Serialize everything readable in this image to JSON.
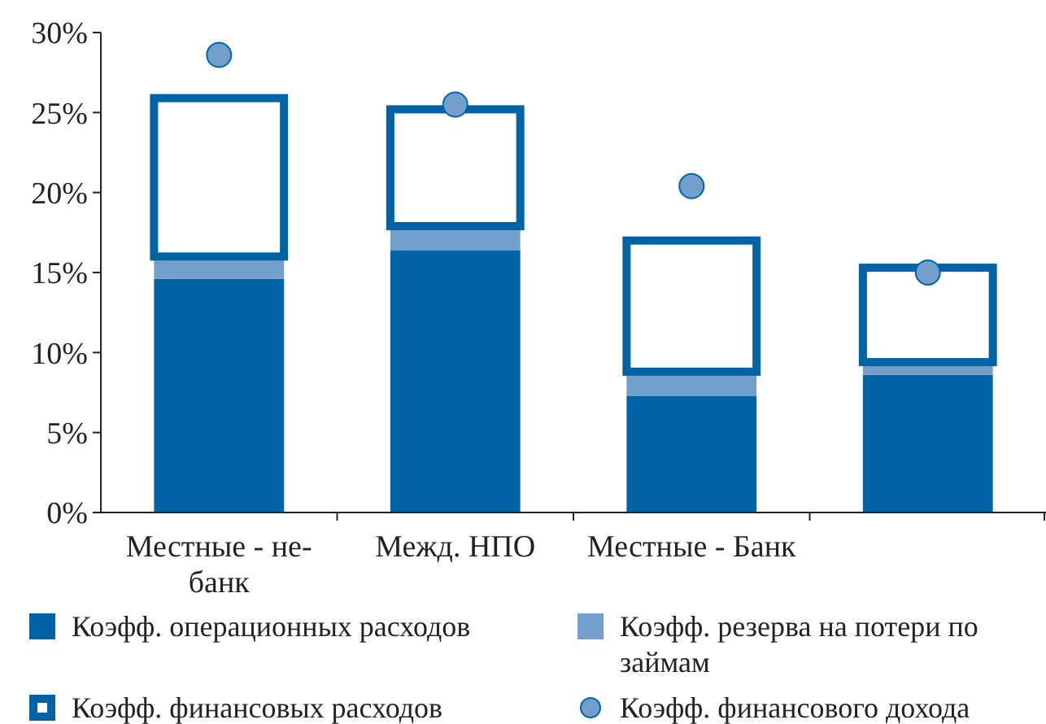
{
  "chart_data": {
    "type": "bar",
    "stacked": true,
    "categories": [
      "Местные - не-банк",
      "Межд. НПО",
      "Местные - Банк",
      null
    ],
    "series": [
      {
        "name": "Коэфф. операционных расходов",
        "color": "#0063a6",
        "values": [
          14.6,
          16.4,
          7.3,
          8.6
        ]
      },
      {
        "name": "Коэфф. резерва на потери по займам",
        "color": "#739fcc",
        "values": [
          1.4,
          1.5,
          1.5,
          0.8
        ]
      },
      {
        "name": "Коэфф. финансовых расходов",
        "color": "#0063a6",
        "values": [
          9.9,
          7.3,
          8.2,
          5.9
        ]
      },
      {
        "name": "Коэфф. финансового дохода",
        "type": "scatter",
        "marker": "circle",
        "color": "#739fcc",
        "values": [
          28.6,
          25.5,
          20.4,
          15.0
        ]
      }
    ],
    "ylim": [
      0,
      30
    ],
    "yticks": [
      {
        "value": 0,
        "label": "0%"
      },
      {
        "value": 5,
        "label": "5%"
      },
      {
        "value": 10,
        "label": "10%"
      },
      {
        "value": 15,
        "label": "15%"
      },
      {
        "value": 20,
        "label": "20%"
      },
      {
        "value": 25,
        "label": "25%"
      },
      {
        "value": 30,
        "label": "30%"
      }
    ],
    "grid": false,
    "legend": "bottom"
  }
}
